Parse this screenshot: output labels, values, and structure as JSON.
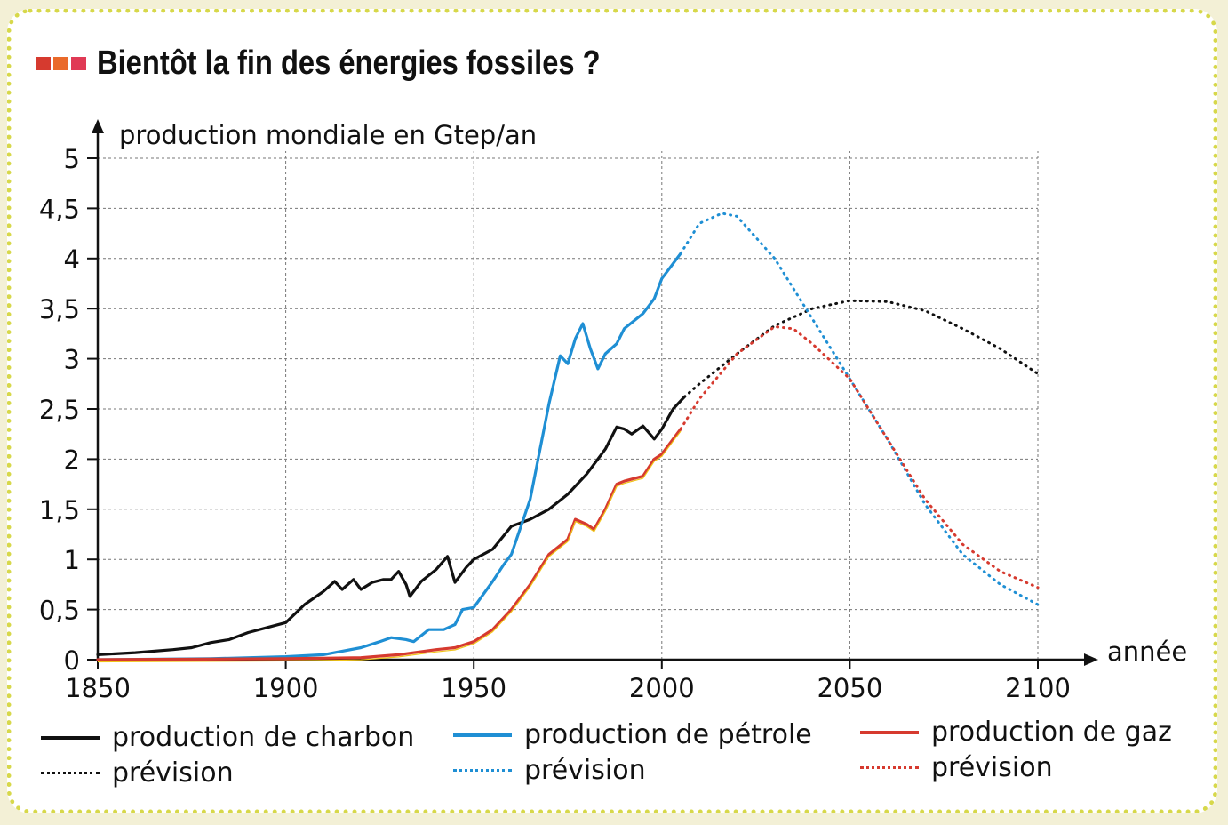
{
  "title": "Bientôt la fin des énergies fossiles ?",
  "title_mark_colors": [
    "#d63a2f",
    "#ea6a2a",
    "#e03a55"
  ],
  "chart_data": {
    "type": "line",
    "ylabel": "production mondiale en Gtep/an",
    "xlabel": "année",
    "xlim": [
      1850,
      2100
    ],
    "ylim": [
      0,
      5
    ],
    "x_ticks": [
      "1850",
      "1900",
      "1950",
      "2000",
      "2050",
      "2100"
    ],
    "y_ticks": [
      "0",
      "0,5",
      "1",
      "1,5",
      "2",
      "2,5",
      "3",
      "3,5",
      "4",
      "4,5",
      "5"
    ],
    "grid": true,
    "series": [
      {
        "name": "production de charbon",
        "color": "#111111",
        "style": "solid",
        "points": [
          [
            1850,
            0.05
          ],
          [
            1860,
            0.07
          ],
          [
            1870,
            0.1
          ],
          [
            1875,
            0.12
          ],
          [
            1880,
            0.17
          ],
          [
            1885,
            0.2
          ],
          [
            1890,
            0.27
          ],
          [
            1895,
            0.32
          ],
          [
            1900,
            0.37
          ],
          [
            1905,
            0.55
          ],
          [
            1910,
            0.68
          ],
          [
            1913,
            0.78
          ],
          [
            1915,
            0.7
          ],
          [
            1918,
            0.8
          ],
          [
            1920,
            0.7
          ],
          [
            1923,
            0.77
          ],
          [
            1926,
            0.8
          ],
          [
            1928,
            0.8
          ],
          [
            1930,
            0.88
          ],
          [
            1932,
            0.75
          ],
          [
            1933,
            0.63
          ],
          [
            1936,
            0.78
          ],
          [
            1940,
            0.9
          ],
          [
            1943,
            1.03
          ],
          [
            1945,
            0.77
          ],
          [
            1948,
            0.92
          ],
          [
            1950,
            1.0
          ],
          [
            1955,
            1.1
          ],
          [
            1960,
            1.33
          ],
          [
            1965,
            1.4
          ],
          [
            1970,
            1.5
          ],
          [
            1975,
            1.65
          ],
          [
            1980,
            1.85
          ],
          [
            1985,
            2.1
          ],
          [
            1988,
            2.32
          ],
          [
            1990,
            2.3
          ],
          [
            1992,
            2.25
          ],
          [
            1995,
            2.33
          ],
          [
            1998,
            2.2
          ],
          [
            2000,
            2.3
          ],
          [
            2003,
            2.5
          ],
          [
            2006,
            2.62
          ]
        ]
      },
      {
        "name": "prévision",
        "color": "#111111",
        "style": "dotted",
        "points": [
          [
            2006,
            2.62
          ],
          [
            2010,
            2.75
          ],
          [
            2020,
            3.05
          ],
          [
            2030,
            3.33
          ],
          [
            2040,
            3.5
          ],
          [
            2050,
            3.58
          ],
          [
            2060,
            3.57
          ],
          [
            2070,
            3.48
          ],
          [
            2080,
            3.3
          ],
          [
            2090,
            3.1
          ],
          [
            2100,
            2.85
          ]
        ]
      },
      {
        "name": "production de pétrole",
        "color": "#1f8fd4",
        "style": "solid",
        "points": [
          [
            1850,
            0.0
          ],
          [
            1880,
            0.01
          ],
          [
            1900,
            0.03
          ],
          [
            1910,
            0.05
          ],
          [
            1920,
            0.12
          ],
          [
            1925,
            0.18
          ],
          [
            1928,
            0.22
          ],
          [
            1932,
            0.2
          ],
          [
            1934,
            0.18
          ],
          [
            1938,
            0.3
          ],
          [
            1942,
            0.3
          ],
          [
            1945,
            0.35
          ],
          [
            1947,
            0.5
          ],
          [
            1950,
            0.52
          ],
          [
            1955,
            0.78
          ],
          [
            1958,
            0.95
          ],
          [
            1960,
            1.05
          ],
          [
            1965,
            1.6
          ],
          [
            1970,
            2.55
          ],
          [
            1973,
            3.03
          ],
          [
            1975,
            2.95
          ],
          [
            1977,
            3.2
          ],
          [
            1979,
            3.35
          ],
          [
            1981,
            3.1
          ],
          [
            1983,
            2.9
          ],
          [
            1985,
            3.05
          ],
          [
            1988,
            3.15
          ],
          [
            1990,
            3.3
          ],
          [
            1995,
            3.45
          ],
          [
            1998,
            3.6
          ],
          [
            2000,
            3.8
          ],
          [
            2005,
            4.05
          ]
        ]
      },
      {
        "name": "prévision",
        "color": "#1f8fd4",
        "style": "dotted",
        "points": [
          [
            2005,
            4.05
          ],
          [
            2010,
            4.35
          ],
          [
            2016,
            4.45
          ],
          [
            2020,
            4.42
          ],
          [
            2030,
            4.0
          ],
          [
            2040,
            3.4
          ],
          [
            2050,
            2.8
          ],
          [
            2060,
            2.2
          ],
          [
            2070,
            1.55
          ],
          [
            2080,
            1.05
          ],
          [
            2090,
            0.75
          ],
          [
            2100,
            0.55
          ]
        ]
      },
      {
        "name": "production de gaz",
        "color": "#d63a2f",
        "style": "solid",
        "points": [
          [
            1850,
            0.0
          ],
          [
            1900,
            0.01
          ],
          [
            1920,
            0.02
          ],
          [
            1930,
            0.05
          ],
          [
            1940,
            0.1
          ],
          [
            1945,
            0.12
          ],
          [
            1950,
            0.18
          ],
          [
            1955,
            0.3
          ],
          [
            1960,
            0.5
          ],
          [
            1965,
            0.75
          ],
          [
            1970,
            1.05
          ],
          [
            1975,
            1.2
          ],
          [
            1977,
            1.4
          ],
          [
            1980,
            1.35
          ],
          [
            1982,
            1.3
          ],
          [
            1985,
            1.5
          ],
          [
            1988,
            1.75
          ],
          [
            1990,
            1.78
          ],
          [
            1995,
            1.83
          ],
          [
            1998,
            2.0
          ],
          [
            2000,
            2.05
          ],
          [
            2003,
            2.2
          ],
          [
            2005,
            2.3
          ]
        ]
      },
      {
        "name": "prévision",
        "color": "#d63a2f",
        "style": "dotted",
        "points": [
          [
            2005,
            2.3
          ],
          [
            2010,
            2.6
          ],
          [
            2020,
            3.05
          ],
          [
            2030,
            3.32
          ],
          [
            2035,
            3.3
          ],
          [
            2040,
            3.15
          ],
          [
            2050,
            2.8
          ],
          [
            2060,
            2.2
          ],
          [
            2070,
            1.6
          ],
          [
            2080,
            1.15
          ],
          [
            2090,
            0.88
          ],
          [
            2100,
            0.72
          ]
        ]
      }
    ]
  },
  "legend": [
    {
      "label": "production de charbon",
      "color": "#111111",
      "style": "solid"
    },
    {
      "label": "production de pétrole",
      "color": "#1f8fd4",
      "style": "solid"
    },
    {
      "label": "production de gaz",
      "color": "#d63a2f",
      "style": "solid"
    },
    {
      "label": "prévision",
      "color": "#111111",
      "style": "dotted"
    },
    {
      "label": "prévision",
      "color": "#1f8fd4",
      "style": "dotted"
    },
    {
      "label": "prévision",
      "color": "#d63a2f",
      "style": "dotted"
    }
  ]
}
